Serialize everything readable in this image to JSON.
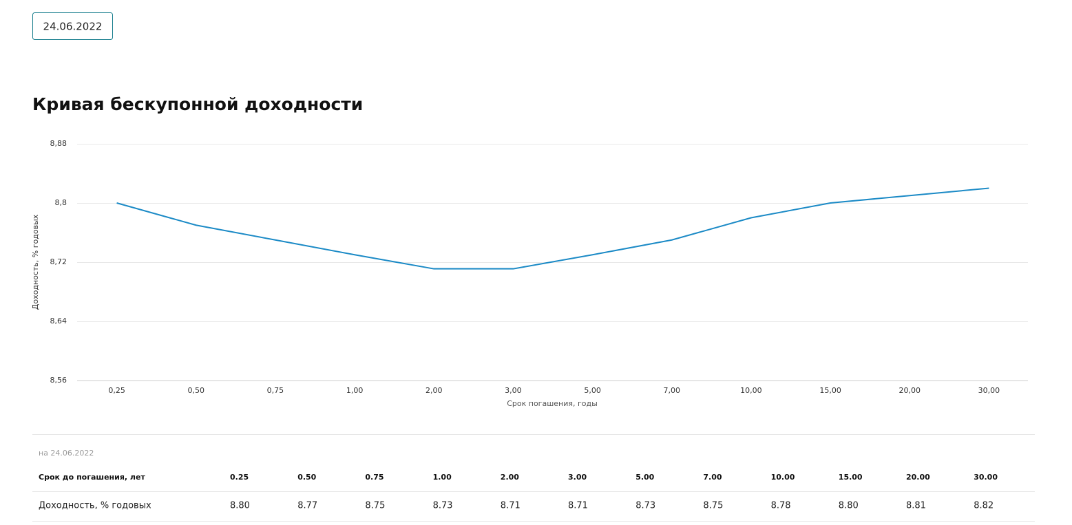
{
  "date_button": "24.06.2022",
  "chart_data": {
    "type": "line",
    "title": "Кривая бескупонной доходности",
    "x_label": "Срок погашения, годы",
    "y_label": "Доходность, % годовых",
    "categories": [
      "0,25",
      "0,50",
      "0,75",
      "1,00",
      "2,00",
      "3,00",
      "5,00",
      "7,00",
      "10,00",
      "15,00",
      "20,00",
      "30,00"
    ],
    "values": [
      8.8,
      8.77,
      8.75,
      8.73,
      8.711,
      8.711,
      8.73,
      8.75,
      8.78,
      8.8,
      8.81,
      8.82
    ],
    "color": "#1b8ac6",
    "ylim": [
      8.56,
      8.88
    ],
    "yticks": [
      {
        "value": 8.56,
        "label": "8,56"
      },
      {
        "value": 8.64,
        "label": "8,64"
      },
      {
        "value": 8.72,
        "label": "8,72"
      },
      {
        "value": 8.8,
        "label": "8,8"
      },
      {
        "value": 8.88,
        "label": "8,88"
      }
    ],
    "grid": true
  },
  "table": {
    "caption": "на 24.06.2022",
    "rows": [
      [
        "Срок до погашения, лет",
        "0.25",
        "0.50",
        "0.75",
        "1.00",
        "2.00",
        "3.00",
        "5.00",
        "7.00",
        "10.00",
        "15.00",
        "20.00",
        "30.00"
      ],
      [
        "Доходность, % годовых",
        "8.80",
        "8.77",
        "8.75",
        "8.73",
        "8.71",
        "8.71",
        "8.73",
        "8.75",
        "8.78",
        "8.80",
        "8.81",
        "8.82"
      ]
    ]
  }
}
